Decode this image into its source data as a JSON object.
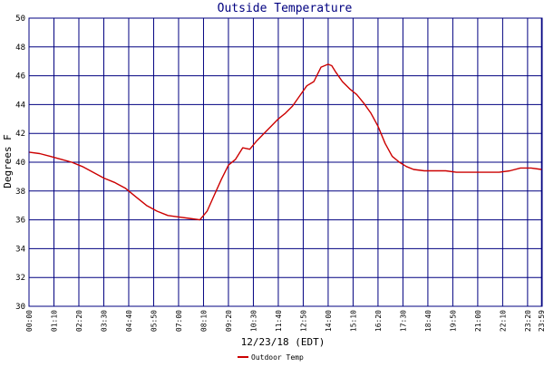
{
  "chart_data": {
    "type": "line",
    "title": "Outside Temperature",
    "xlabel": "12/23/18 (EDT)",
    "ylabel": "Degrees F",
    "ylim": [
      30,
      50
    ],
    "yticks": [
      30,
      32,
      34,
      36,
      38,
      40,
      42,
      44,
      46,
      48,
      50
    ],
    "xlim": [
      "00:00",
      "24:00"
    ],
    "xtick_labels": [
      "00:00",
      "01:10",
      "02:20",
      "03:30",
      "04:40",
      "05:50",
      "07:00",
      "08:10",
      "09:20",
      "10:30",
      "11:40",
      "12:50",
      "14:00",
      "15:10",
      "16:20",
      "17:30",
      "18:40",
      "19:50",
      "21:00",
      "22:10",
      "23:20",
      "23:59"
    ],
    "grid": true,
    "legend": "bottom-center",
    "colors": {
      "line": "#cc0000",
      "grid": "#000080",
      "title": "#000080"
    },
    "series": [
      {
        "name": "Outdoor Temp",
        "x": [
          "00:00",
          "00:30",
          "01:00",
          "01:30",
          "02:00",
          "02:30",
          "03:00",
          "03:30",
          "04:00",
          "04:30",
          "05:00",
          "05:30",
          "06:00",
          "06:30",
          "07:00",
          "07:30",
          "08:00",
          "08:20",
          "08:40",
          "09:00",
          "09:20",
          "09:40",
          "10:00",
          "10:20",
          "10:40",
          "11:00",
          "11:20",
          "11:40",
          "12:00",
          "12:20",
          "12:40",
          "13:00",
          "13:20",
          "13:40",
          "14:00",
          "14:10",
          "14:20",
          "14:40",
          "15:00",
          "15:20",
          "15:40",
          "16:00",
          "16:20",
          "16:40",
          "17:00",
          "17:20",
          "17:40",
          "18:00",
          "18:30",
          "19:00",
          "19:30",
          "20:00",
          "20:30",
          "21:00",
          "21:30",
          "22:00",
          "22:30",
          "23:00",
          "23:30",
          "23:59"
        ],
        "values": [
          40.7,
          40.6,
          40.4,
          40.2,
          40.0,
          39.7,
          39.3,
          38.9,
          38.6,
          38.2,
          37.6,
          37.0,
          36.6,
          36.3,
          36.2,
          36.1,
          36.0,
          36.6,
          37.7,
          38.8,
          39.8,
          40.2,
          41.0,
          40.9,
          41.5,
          42.0,
          42.5,
          43.0,
          43.4,
          43.9,
          44.6,
          45.3,
          45.6,
          46.6,
          46.8,
          46.7,
          46.3,
          45.6,
          45.1,
          44.7,
          44.1,
          43.4,
          42.5,
          41.3,
          40.4,
          40.0,
          39.7,
          39.5,
          39.4,
          39.4,
          39.4,
          39.3,
          39.3,
          39.3,
          39.3,
          39.3,
          39.4,
          39.6,
          39.6,
          39.5
        ]
      }
    ]
  }
}
